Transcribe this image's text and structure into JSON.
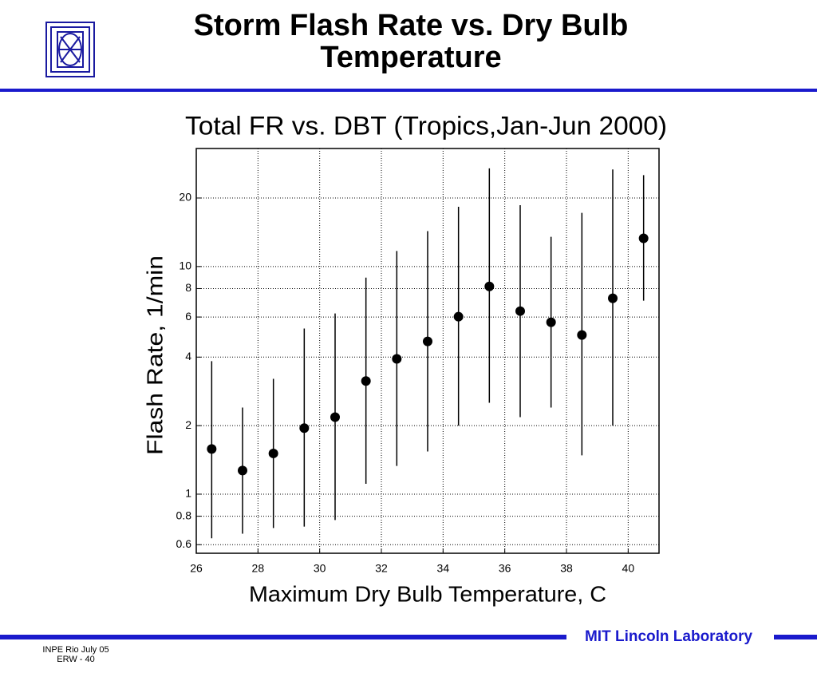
{
  "slide": {
    "title_lines": [
      "Storm Flash Rate vs. Dry Bulb",
      "Temperature"
    ],
    "footer_right": "MIT Lincoln Laboratory",
    "footer_left": [
      "INPE Rio  July 05",
      "ERW - 40"
    ]
  },
  "chart_data": {
    "type": "scatter",
    "title": "Total FR vs. DBT (Tropics,Jan-Jun 2000)",
    "x_label": "Maximum Dry Bulb Temperature, C",
    "y_label": "Flash Rate,  1/min",
    "x": [
      26.5,
      27.5,
      28.5,
      29.5,
      30.5,
      31.5,
      32.5,
      33.5,
      34.5,
      35.5,
      36.5,
      37.5,
      38.5,
      39.5,
      40.5
    ],
    "values": [
      1.58,
      1.27,
      1.51,
      1.95,
      2.18,
      3.14,
      3.93,
      4.69,
      6.02,
      8.18,
      6.37,
      5.69,
      5.0,
      7.25,
      13.3
    ],
    "upper": [
      3.84,
      2.4,
      3.21,
      5.34,
      6.22,
      8.94,
      11.7,
      14.3,
      18.3,
      27.0,
      18.6,
      13.5,
      17.2,
      26.7,
      25.2
    ],
    "lower": [
      0.64,
      0.67,
      0.71,
      0.72,
      0.77,
      1.11,
      1.33,
      1.54,
      2.0,
      2.52,
      2.18,
      2.4,
      1.48,
      2.0,
      7.08
    ],
    "color": "#000000",
    "xlim": [
      26,
      41
    ],
    "xticks": [
      26,
      28,
      30,
      32,
      34,
      36,
      38,
      40
    ],
    "ylim": [
      0.55,
      33
    ],
    "yticks": [
      0.6,
      0.8,
      1,
      2,
      4,
      6,
      8,
      10,
      20
    ],
    "y_log": true,
    "grid": true
  }
}
